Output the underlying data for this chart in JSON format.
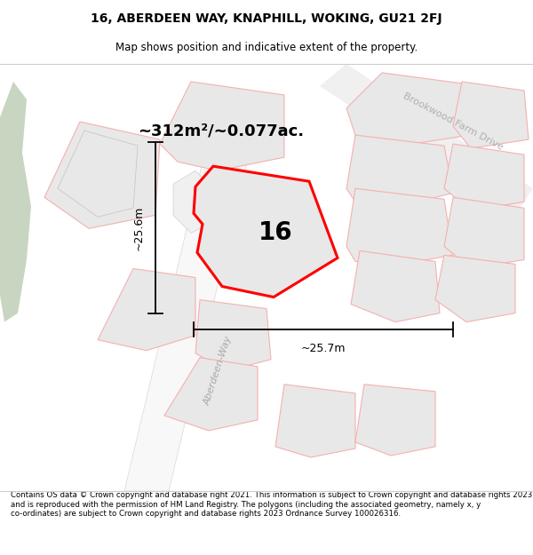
{
  "title": "16, ABERDEEN WAY, KNAPHILL, WOKING, GU21 2FJ",
  "subtitle": "Map shows position and indicative extent of the property.",
  "footer": "Contains OS data © Crown copyright and database right 2021. This information is subject to Crown copyright and database rights 2023 and is reproduced with the permission of HM Land Registry. The polygons (including the associated geometry, namely x, y co-ordinates) are subject to Crown copyright and database rights 2023 Ordnance Survey 100026316.",
  "area_text": "~312m²/~0.077ac.",
  "label_16": "16",
  "dim_height": "~25.6m",
  "dim_width": "~25.7m",
  "street_label": "Aberdeen-Way",
  "road_label": "Brookwood Farm Drive",
  "map_bg": "#ffffff",
  "plot_fill": "#e8e8e8",
  "plot_edge_main": "#ff0000",
  "plot_edge_other": "#f5b0b0",
  "plot_border_gray": "#c8c8c8",
  "green_area": "#c8d5c0",
  "dim_line_color": "#000000",
  "road_fill": "#f0f0f0",
  "road_edge": "#dddddd"
}
